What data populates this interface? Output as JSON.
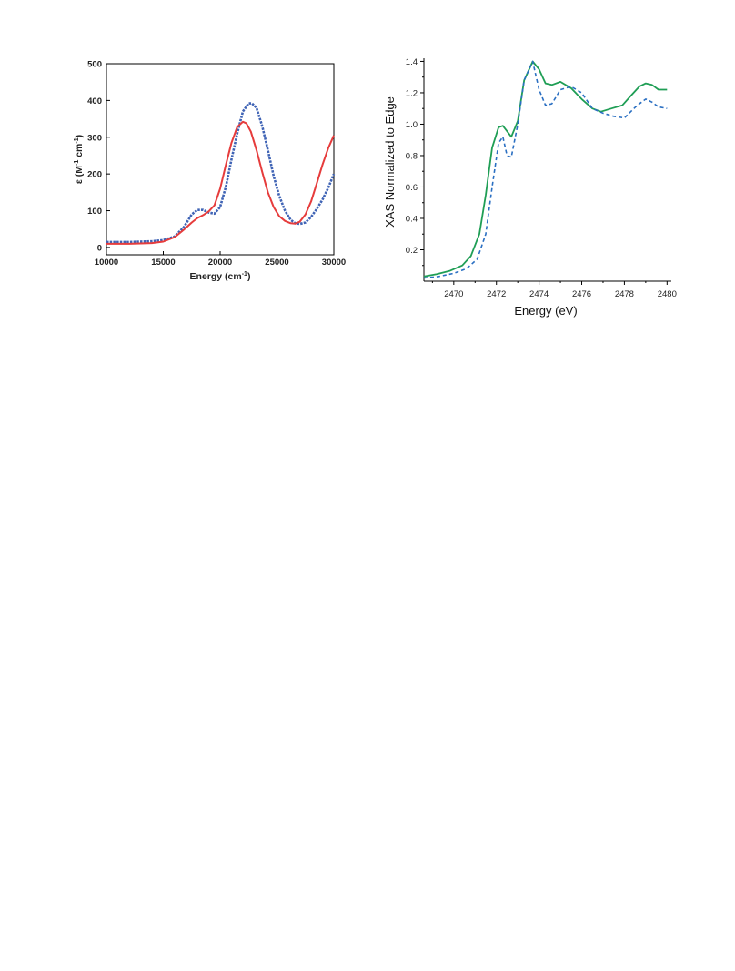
{
  "chart_data": [
    {
      "type": "line",
      "xlabel": "Energy (cm",
      "xlabel_sup": "-1",
      "xlabel_end": ")",
      "ylabel_parts": [
        "ε (M",
        "-1",
        " cm",
        "-1",
        ")"
      ],
      "xlim": [
        10000,
        30000
      ],
      "ylim": [
        -20,
        500
      ],
      "xticks": [
        10000,
        15000,
        20000,
        25000,
        30000
      ],
      "xtick_labels": [
        "10000",
        "15000",
        "20000",
        "25000",
        "30000"
      ],
      "yticks": [
        0,
        100,
        200,
        300,
        400,
        500
      ],
      "ytick_labels": [
        "0",
        "100",
        "200",
        "300",
        "400",
        "500"
      ],
      "grid": false,
      "series": [
        {
          "color": "#3f63b5",
          "style": "dotted",
          "x": [
            10000,
            12000,
            14000,
            15000,
            16000,
            16800,
            17500,
            18000,
            18500,
            19000,
            19500,
            20000,
            20500,
            21000,
            21500,
            22000,
            22500,
            22800,
            23200,
            23700,
            24200,
            24700,
            25200,
            25700,
            26200,
            26600,
            27000,
            27500,
            28000,
            28500,
            29000,
            29500,
            30000
          ],
          "y": [
            15,
            15,
            17,
            20,
            30,
            55,
            90,
            102,
            102,
            95,
            92,
            110,
            165,
            240,
            310,
            370,
            392,
            392,
            380,
            330,
            265,
            195,
            140,
            100,
            75,
            66,
            64,
            68,
            83,
            105,
            130,
            162,
            200
          ]
        },
        {
          "color": "#e63c3c",
          "style": "solid",
          "x": [
            10000,
            12000,
            14000,
            15000,
            16000,
            16800,
            17500,
            18000,
            18500,
            19000,
            19500,
            20000,
            20500,
            21000,
            21500,
            22000,
            22300,
            22700,
            23200,
            23700,
            24200,
            24700,
            25200,
            25700,
            26200,
            26600,
            27000,
            27500,
            28000,
            28500,
            29000,
            29500,
            30000
          ],
          "y": [
            10,
            10,
            12,
            16,
            28,
            48,
            68,
            80,
            88,
            98,
            115,
            160,
            225,
            285,
            328,
            342,
            338,
            315,
            265,
            205,
            150,
            110,
            85,
            72,
            66,
            65,
            70,
            90,
            125,
            175,
            225,
            270,
            305
          ]
        }
      ]
    },
    {
      "type": "line",
      "xlabel": "Energy (eV)",
      "ylabel": "XAS Normalized to Edge",
      "xlim": [
        2468.6,
        2480.2
      ],
      "ylim": [
        0.0,
        1.42
      ],
      "xticks": [
        2470,
        2472,
        2474,
        2476,
        2478,
        2480
      ],
      "xtick_labels": [
        "2470",
        "2472",
        "2474",
        "2476",
        "2478",
        "2480"
      ],
      "yticks": [
        0.2,
        0.4,
        0.6,
        0.8,
        1.0,
        1.2,
        1.4
      ],
      "ytick_labels": [
        "0.2",
        "0.4",
        "0.6",
        "0.8",
        "1.0",
        "1.2",
        "1.4"
      ],
      "grid": false,
      "series": [
        {
          "color": "#1f9e55",
          "style": "solid",
          "x": [
            2468.6,
            2469.2,
            2469.8,
            2470.4,
            2470.8,
            2471.2,
            2471.5,
            2471.8,
            2472.1,
            2472.3,
            2472.7,
            2473.0,
            2473.3,
            2473.7,
            2474.0,
            2474.3,
            2474.6,
            2475.0,
            2475.5,
            2476.0,
            2476.5,
            2476.9,
            2477.4,
            2477.9,
            2478.3,
            2478.7,
            2479.0,
            2479.3,
            2479.6,
            2480.0
          ],
          "y": [
            0.03,
            0.045,
            0.065,
            0.1,
            0.16,
            0.3,
            0.55,
            0.85,
            0.98,
            0.99,
            0.92,
            1.02,
            1.28,
            1.4,
            1.35,
            1.26,
            1.25,
            1.27,
            1.23,
            1.16,
            1.1,
            1.08,
            1.1,
            1.12,
            1.18,
            1.24,
            1.26,
            1.25,
            1.22,
            1.22
          ]
        },
        {
          "color": "#2a6fc2",
          "style": "dashed",
          "x": [
            2468.6,
            2469.3,
            2470.0,
            2470.6,
            2471.1,
            2471.5,
            2471.8,
            2472.1,
            2472.3,
            2472.5,
            2472.7,
            2473.0,
            2473.3,
            2473.7,
            2474.0,
            2474.3,
            2474.6,
            2475.0,
            2475.5,
            2476.0,
            2476.5,
            2477.0,
            2477.5,
            2478.0,
            2478.3,
            2478.6,
            2479.0,
            2479.3,
            2479.6,
            2480.0
          ],
          "y": [
            0.02,
            0.03,
            0.05,
            0.08,
            0.14,
            0.3,
            0.6,
            0.88,
            0.92,
            0.8,
            0.79,
            1.0,
            1.28,
            1.4,
            1.22,
            1.12,
            1.13,
            1.22,
            1.24,
            1.2,
            1.1,
            1.07,
            1.05,
            1.04,
            1.08,
            1.12,
            1.16,
            1.14,
            1.11,
            1.1
          ]
        }
      ]
    }
  ]
}
